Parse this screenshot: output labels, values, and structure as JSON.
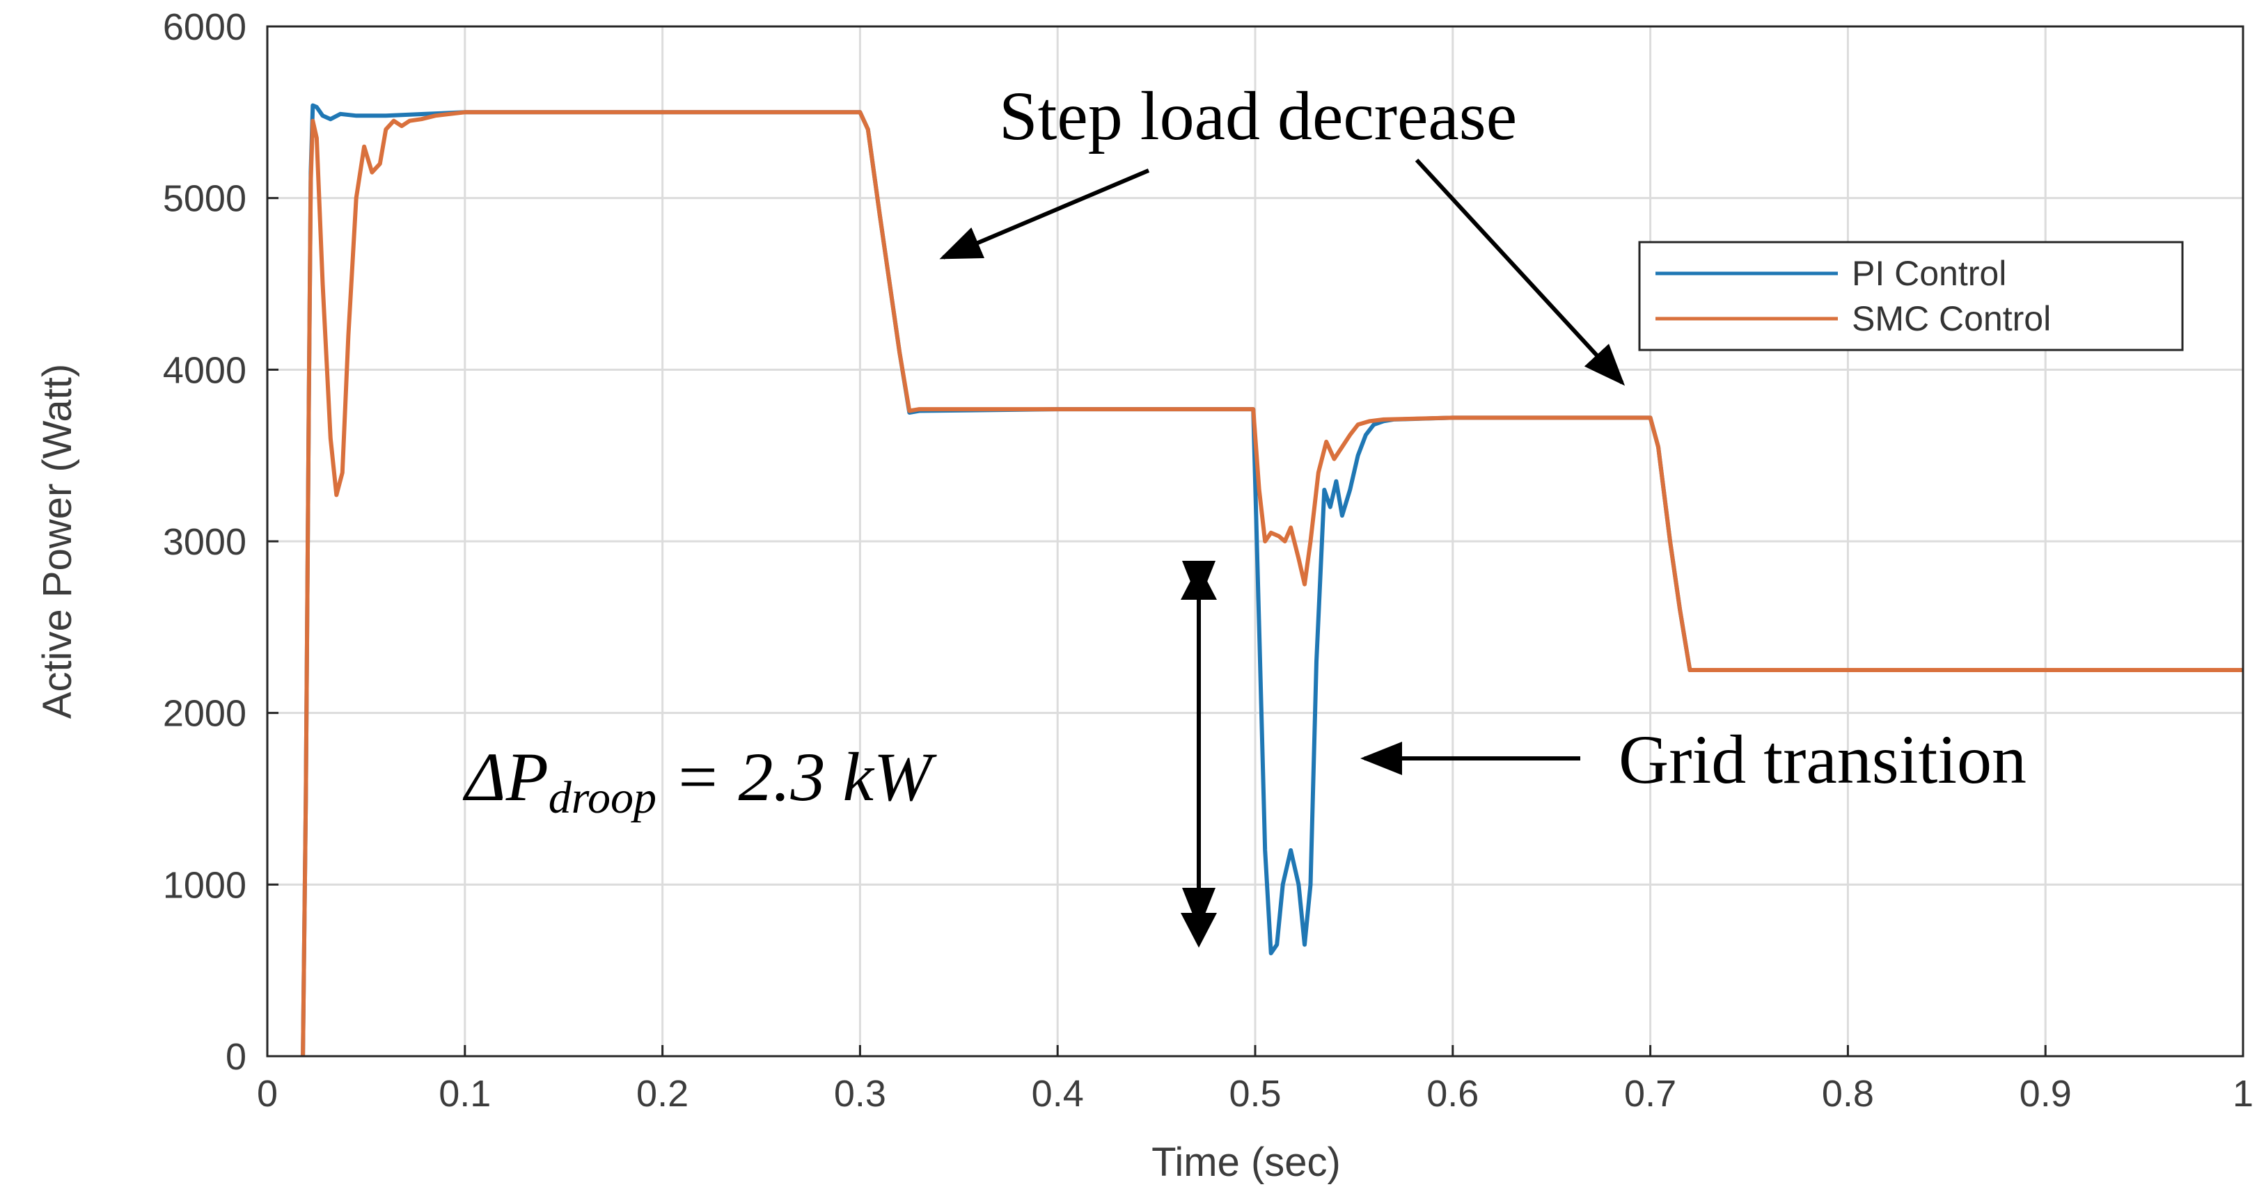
{
  "chart_data": {
    "type": "line",
    "title": "",
    "xlabel": "Time (sec)",
    "ylabel": "Active Power (Watt)",
    "xlim": [
      0,
      1
    ],
    "ylim": [
      0,
      6000
    ],
    "grid": true,
    "legend_position": "top-right",
    "x_ticks": [
      "0",
      "0.1",
      "0.2",
      "0.3",
      "0.4",
      "0.5",
      "0.6",
      "0.7",
      "0.8",
      "0.9",
      "1"
    ],
    "y_ticks": [
      "0",
      "1000",
      "2000",
      "3000",
      "4000",
      "5000",
      "6000"
    ],
    "series": [
      {
        "name": "PI Control",
        "color": "#1f77b4",
        "x": [
          0.018,
          0.0195,
          0.021,
          0.022,
          0.023,
          0.025,
          0.028,
          0.032,
          0.037,
          0.045,
          0.06,
          0.08,
          0.1,
          0.2,
          0.3,
          0.304,
          0.31,
          0.32,
          0.325,
          0.33,
          0.4,
          0.499,
          0.502,
          0.505,
          0.508,
          0.511,
          0.514,
          0.518,
          0.522,
          0.525,
          0.528,
          0.531,
          0.535,
          0.538,
          0.541,
          0.544,
          0.548,
          0.552,
          0.556,
          0.56,
          0.565,
          0.57,
          0.6,
          0.7,
          0.704,
          0.71,
          0.715,
          0.72,
          0.8,
          0.9,
          1.0
        ],
        "y": [
          0,
          1500,
          3800,
          5150,
          5540,
          5530,
          5480,
          5460,
          5490,
          5480,
          5480,
          5490,
          5500,
          5500,
          5500,
          5400,
          4900,
          4100,
          3750,
          3760,
          3770,
          3770,
          2500,
          1200,
          600,
          650,
          1000,
          1200,
          1000,
          650,
          1000,
          2300,
          3300,
          3200,
          3350,
          3150,
          3300,
          3500,
          3620,
          3680,
          3700,
          3710,
          3720,
          3720,
          3550,
          3000,
          2600,
          2250,
          2250,
          2250,
          2250
        ]
      },
      {
        "name": "SMC Control",
        "color": "#d9703c",
        "x": [
          0.018,
          0.0195,
          0.021,
          0.022,
          0.023,
          0.025,
          0.028,
          0.032,
          0.035,
          0.038,
          0.041,
          0.045,
          0.049,
          0.053,
          0.057,
          0.06,
          0.064,
          0.068,
          0.072,
          0.078,
          0.085,
          0.1,
          0.2,
          0.3,
          0.304,
          0.31,
          0.32,
          0.325,
          0.33,
          0.4,
          0.499,
          0.502,
          0.505,
          0.508,
          0.512,
          0.515,
          0.518,
          0.522,
          0.525,
          0.528,
          0.532,
          0.536,
          0.54,
          0.544,
          0.548,
          0.552,
          0.558,
          0.565,
          0.6,
          0.7,
          0.704,
          0.71,
          0.715,
          0.72,
          0.8,
          0.9,
          1.0
        ],
        "y": [
          0,
          1500,
          3800,
          5100,
          5450,
          5350,
          4500,
          3600,
          3270,
          3400,
          4200,
          5000,
          5300,
          5150,
          5200,
          5400,
          5450,
          5420,
          5450,
          5460,
          5480,
          5500,
          5500,
          5500,
          5400,
          4900,
          4100,
          3760,
          3770,
          3770,
          3770,
          3300,
          3000,
          3050,
          3030,
          3000,
          3080,
          2900,
          2750,
          3000,
          3400,
          3580,
          3480,
          3550,
          3620,
          3680,
          3700,
          3710,
          3720,
          3720,
          3550,
          3000,
          2600,
          2250,
          2250,
          2250,
          2250
        ]
      }
    ],
    "annotations": {
      "step_load": "Step load decrease",
      "grid_transition": "Grid transition",
      "delta_symbol": "ΔP",
      "delta_subscript": "droop",
      "delta_value": " = 2.3 kW"
    }
  }
}
